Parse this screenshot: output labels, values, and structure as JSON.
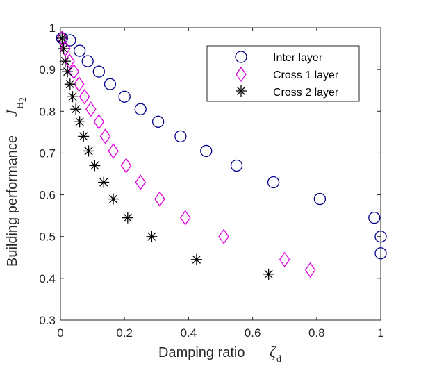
{
  "chart_data": {
    "type": "scatter",
    "xlabel": "Damping ratio",
    "xlabel_symbol": "ζ",
    "xlabel_subscript": "d",
    "ylabel": "Building performance",
    "ylabel_symbol": "J",
    "ylabel_subscript": "H",
    "ylabel_subscript2": "2",
    "xlim": [
      0,
      1
    ],
    "ylim": [
      0.3,
      1
    ],
    "xticks": [
      "0",
      "0.2",
      "0.4",
      "0.6",
      "0.8",
      "1"
    ],
    "yticks": [
      "0.3",
      "0.4",
      "0.5",
      "0.6",
      "0.7",
      "0.8",
      "0.9",
      "1"
    ],
    "grid": false,
    "legend_position": "top-right",
    "series": [
      {
        "name": "Inter layer",
        "marker": "circle",
        "color": "#00008B",
        "x": [
          0.005,
          0.03,
          0.06,
          0.085,
          0.12,
          0.155,
          0.2,
          0.25,
          0.305,
          0.375,
          0.455,
          0.55,
          0.665,
          0.81,
          0.98,
          1.0,
          1.0
        ],
        "y": [
          0.975,
          0.97,
          0.945,
          0.92,
          0.895,
          0.865,
          0.835,
          0.805,
          0.775,
          0.74,
          0.705,
          0.67,
          0.63,
          0.59,
          0.545,
          0.5,
          0.46
        ]
      },
      {
        "name": "Cross 1 layer",
        "marker": "diamond",
        "color": "#E000E0",
        "x": [
          0.005,
          0.015,
          0.028,
          0.042,
          0.058,
          0.075,
          0.095,
          0.12,
          0.14,
          0.165,
          0.205,
          0.25,
          0.31,
          0.39,
          0.51,
          0.7,
          0.78
        ],
        "y": [
          0.975,
          0.95,
          0.92,
          0.895,
          0.865,
          0.835,
          0.805,
          0.775,
          0.74,
          0.705,
          0.67,
          0.63,
          0.59,
          0.545,
          0.5,
          0.445,
          0.42
        ]
      },
      {
        "name": "Cross 2 layer",
        "marker": "asterisk",
        "color": "#000000",
        "x": [
          0.005,
          0.01,
          0.015,
          0.022,
          0.03,
          0.038,
          0.048,
          0.06,
          0.072,
          0.088,
          0.107,
          0.135,
          0.165,
          0.21,
          0.285,
          0.425,
          0.65
        ],
        "y": [
          0.975,
          0.95,
          0.92,
          0.895,
          0.865,
          0.835,
          0.805,
          0.775,
          0.74,
          0.705,
          0.67,
          0.63,
          0.59,
          0.545,
          0.5,
          0.445,
          0.41
        ]
      }
    ]
  }
}
